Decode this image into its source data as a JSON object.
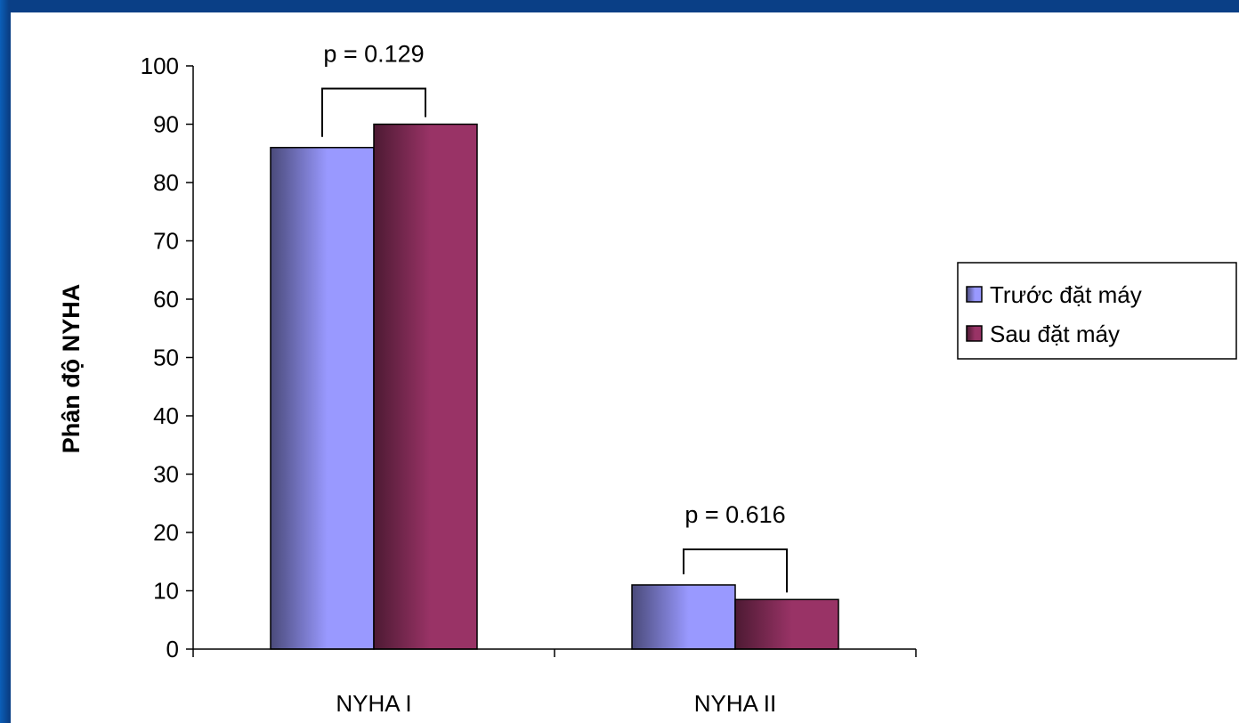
{
  "chart_data": {
    "type": "bar",
    "categories": [
      "NYHA I",
      "NYHA II"
    ],
    "series": [
      {
        "name": "Trước đặt máy",
        "values": [
          86,
          11
        ],
        "color_dark": "#4a4a7a",
        "color_light": "#9999ff"
      },
      {
        "name": "Sau đặt máy",
        "values": [
          90,
          8.5
        ],
        "color_dark": "#4d1a33",
        "color_light": "#993366"
      }
    ],
    "ylabel": "Phân độ NYHA",
    "xlabel": "",
    "ylim": [
      0,
      100
    ],
    "yticks": [
      0,
      10,
      20,
      30,
      40,
      50,
      60,
      70,
      80,
      90,
      100
    ],
    "annotations": [
      {
        "text": "p = 0.129",
        "category": "NYHA I"
      },
      {
        "text": "p = 0.616",
        "category": "NYHA II"
      }
    ],
    "legend_position": "right",
    "grid": false
  }
}
